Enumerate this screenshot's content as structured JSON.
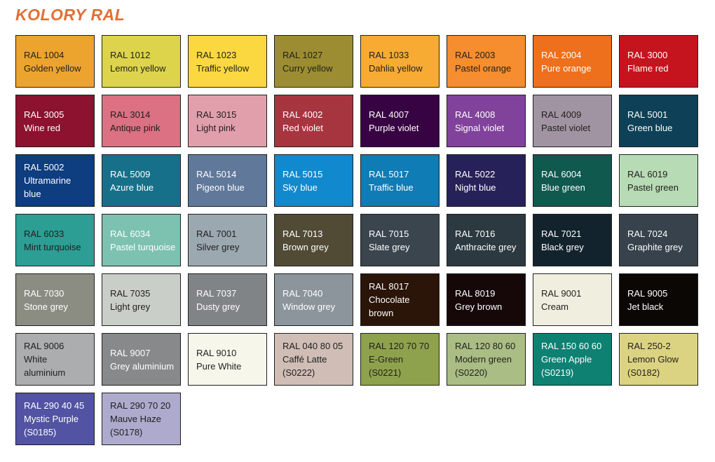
{
  "title": "KOLORY RAL",
  "colors": {
    "title": "#E26F35",
    "background": "#FFFFFF",
    "swatch_border": "#1F1F1F",
    "text_dark": "#201F1D",
    "text_light": "#FFFFFF"
  },
  "swatches": [
    {
      "code": "RAL 1004",
      "name": "Golden yellow",
      "bg": "#ECA42F",
      "light_text": false
    },
    {
      "code": "RAL 1012",
      "name": "Lemon yellow",
      "bg": "#DDD44C",
      "light_text": false
    },
    {
      "code": "RAL 1023",
      "name": "Traffic yellow",
      "bg": "#FBD840",
      "light_text": false
    },
    {
      "code": "RAL 1027",
      "name": "Curry yellow",
      "bg": "#9C8D33",
      "light_text": false
    },
    {
      "code": "RAL 1033",
      "name": "Dahlia yellow",
      "bg": "#F7AB33",
      "light_text": false
    },
    {
      "code": "RAL 2003",
      "name": "Pastel orange",
      "bg": "#F68D2E",
      "light_text": false
    },
    {
      "code": "RAL 2004",
      "name": "Pure orange",
      "bg": "#EE701D",
      "light_text": true
    },
    {
      "code": "RAL 3000",
      "name": "Flame red",
      "bg": "#C5141E",
      "light_text": true
    },
    {
      "code": "RAL 3005",
      "name": "Wine red",
      "bg": "#8C1230",
      "light_text": true
    },
    {
      "code": "RAL 3014",
      "name": "Antique pink",
      "bg": "#DB7183",
      "light_text": false
    },
    {
      "code": "RAL 3015",
      "name": "Light pink",
      "bg": "#E19FAB",
      "light_text": false
    },
    {
      "code": "RAL 4002",
      "name": "Red violet",
      "bg": "#A73540",
      "light_text": true
    },
    {
      "code": "RAL 4007",
      "name": "Purple violet",
      "bg": "#380343",
      "light_text": true
    },
    {
      "code": "RAL 4008",
      "name": "Signal violet",
      "bg": "#81429B",
      "light_text": true
    },
    {
      "code": "RAL 4009",
      "name": "Pastel violet",
      "bg": "#A194A2",
      "light_text": false
    },
    {
      "code": "RAL 5001",
      "name": "Green blue",
      "bg": "#0E4157",
      "light_text": true
    },
    {
      "code": "RAL 5002",
      "name": "Ultramarine blue",
      "bg": "#0E3D80",
      "light_text": true
    },
    {
      "code": "RAL 5009",
      "name": "Azure blue",
      "bg": "#17708A",
      "light_text": true
    },
    {
      "code": "RAL 5014",
      "name": "Pigeon blue",
      "bg": "#60789A",
      "light_text": true
    },
    {
      "code": "RAL 5015",
      "name": "Sky blue",
      "bg": "#1189CE",
      "light_text": true
    },
    {
      "code": "RAL 5017",
      "name": "Traffic blue",
      "bg": "#0F7CB5",
      "light_text": true
    },
    {
      "code": "RAL 5022",
      "name": "Night blue",
      "bg": "#272159",
      "light_text": true
    },
    {
      "code": "RAL 6004",
      "name": "Blue green",
      "bg": "#10594F",
      "light_text": true
    },
    {
      "code": "RAL 6019",
      "name": "Pastel green",
      "bg": "#B7DBB5",
      "light_text": false
    },
    {
      "code": "RAL 6033",
      "name": "Mint turquoise",
      "bg": "#2C9E94",
      "light_text": false
    },
    {
      "code": "RAL 6034",
      "name": "Pastel turquoise",
      "bg": "#7DC1B1",
      "light_text": true
    },
    {
      "code": "RAL 7001",
      "name": "Silver grey",
      "bg": "#9BA8B0",
      "light_text": false
    },
    {
      "code": "RAL 7013",
      "name": "Brown grey",
      "bg": "#514B36",
      "light_text": true
    },
    {
      "code": "RAL 7015",
      "name": "Slate grey",
      "bg": "#3A454E",
      "light_text": true
    },
    {
      "code": "RAL 7016",
      "name": "Anthracite grey",
      "bg": "#2C3940",
      "light_text": true
    },
    {
      "code": "RAL 7021",
      "name": "Black grey",
      "bg": "#13232D",
      "light_text": true
    },
    {
      "code": "RAL 7024",
      "name": "Graphite grey",
      "bg": "#37424C",
      "light_text": true
    },
    {
      "code": "RAL 7030",
      "name": "Stone grey",
      "bg": "#8B8D83",
      "light_text": true
    },
    {
      "code": "RAL 7035",
      "name": "Light grey",
      "bg": "#C9CFC8",
      "light_text": false
    },
    {
      "code": "RAL 7037",
      "name": "Dusty grey",
      "bg": "#808486",
      "light_text": true
    },
    {
      "code": "RAL 7040",
      "name": "Window grey",
      "bg": "#8B959B",
      "light_text": true
    },
    {
      "code": "RAL 8017",
      "name": "Chocolate brown",
      "bg": "#2B1408",
      "light_text": true
    },
    {
      "code": "RAL 8019",
      "name": "Grey brown",
      "bg": "#160809",
      "light_text": true
    },
    {
      "code": "RAL 9001",
      "name": "Cream",
      "bg": "#F0EEDF",
      "light_text": false
    },
    {
      "code": "RAL 9005",
      "name": "Jet black",
      "bg": "#0B0705",
      "light_text": true
    },
    {
      "code": "RAL 9006",
      "name": "White aluminium",
      "bg": "#ACADAF",
      "light_text": false
    },
    {
      "code": "RAL 9007",
      "name": "Grey aluminium",
      "bg": "#88898B",
      "light_text": true
    },
    {
      "code": "RAL 9010",
      "name": "Pure White",
      "bg": "#F7F6EB",
      "light_text": false
    },
    {
      "code": "RAL 040 80 05",
      "name": "Caffé Latte",
      "suffix": "(S0222)",
      "bg": "#CFBDB6",
      "light_text": false
    },
    {
      "code": "RAL 120 70 70",
      "name": "E-Green",
      "suffix": "(S0221)",
      "bg": "#8EA24E",
      "light_text": false
    },
    {
      "code": "RAL 120 80 60",
      "name": "Modern green",
      "suffix": "(S0220)",
      "bg": "#AABD84",
      "light_text": false
    },
    {
      "code": "RAL 150 60 60",
      "name": "Green Apple",
      "suffix": "(S0219)",
      "bg": "#0E8173",
      "light_text": true
    },
    {
      "code": "RAL 250-2",
      "name": "Lemon Glow",
      "suffix": "(S0182)",
      "bg": "#DCD382",
      "light_text": false
    },
    {
      "code": "RAL 290 40 45",
      "name": "Mystic Purple",
      "suffix": "(S0185)",
      "bg": "#5253A3",
      "light_text": true
    },
    {
      "code": "RAL 290 70 20",
      "name": "Mauve Haze",
      "suffix": "(S0178)",
      "bg": "#AEAACE",
      "light_text": false
    }
  ]
}
